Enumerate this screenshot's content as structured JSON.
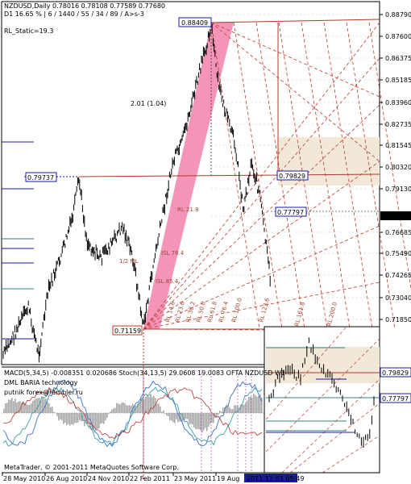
{
  "header": {
    "symbol_line": "NZDUSD,Daily  0.78016 0.78108 0.77589 0.77680",
    "info_line": "D1  16.65 %  |  6 / 1440 / 55 / 34 / 89 / A>s-3",
    "rl_static": "RL_Static=19.3",
    "ratio_label": "2.01 (1.04)"
  },
  "boxes": {
    "high": "0.88409",
    "mid_left": "0.79737",
    "mid_right": "0.79829",
    "current": "0.77797",
    "low": "0.71159",
    "last_price": "0.77680",
    "inset_upper": "0.79829",
    "inset_lower": "0.77797"
  },
  "price_axis": [
    "0.88790",
    "0.87600",
    "0.86375",
    "0.85185",
    "0.83960",
    "0.82735",
    "0.81545",
    "0.80320",
    "0.79130",
    "0.77680",
    "0.76685",
    "0.75490",
    "0.74265",
    "0.73040",
    "0.71850"
  ],
  "date_axis": [
    "28 May 2010",
    "26 Aug 2010",
    "24 Nov 2010",
    "22 Feb 2011",
    "23 May 2011",
    "19 Aug",
    "2011.12.01 05:49"
  ],
  "level_labels": [
    "RL 21.8",
    "ISL 76.4",
    "ISL 85.4",
    "RL 14.6",
    "RL 23.6",
    "RL 38.2",
    "RL 50.0",
    "RL 61.8",
    "RL 76.4",
    "RL 100.0",
    "RL 123.6",
    "RL 161.8",
    "RL 200.0",
    "1/2 ML"
  ],
  "macd": {
    "label": "MACD(5,34,5) -0.008351 0.020686   Stoch(34,13,5) 29.0608 19.0083   OFTA NZDUSD W1",
    "watermark1": "DML BARIA technology",
    "watermark2": "putnik forex@rambler.ru",
    "indicator_labels": [
      "ML 1.0",
      "14.4",
      "38.2"
    ]
  },
  "footer": "MetaTrader, © 2001-2011 MetaQuotes Software Corp.",
  "colors": {
    "price_bar": "#000000",
    "pink_channel": "#f06090",
    "level_line": "#b03a2a",
    "axis_box": "#1a1aa0",
    "macd_hist": "#a0a0a0"
  }
}
